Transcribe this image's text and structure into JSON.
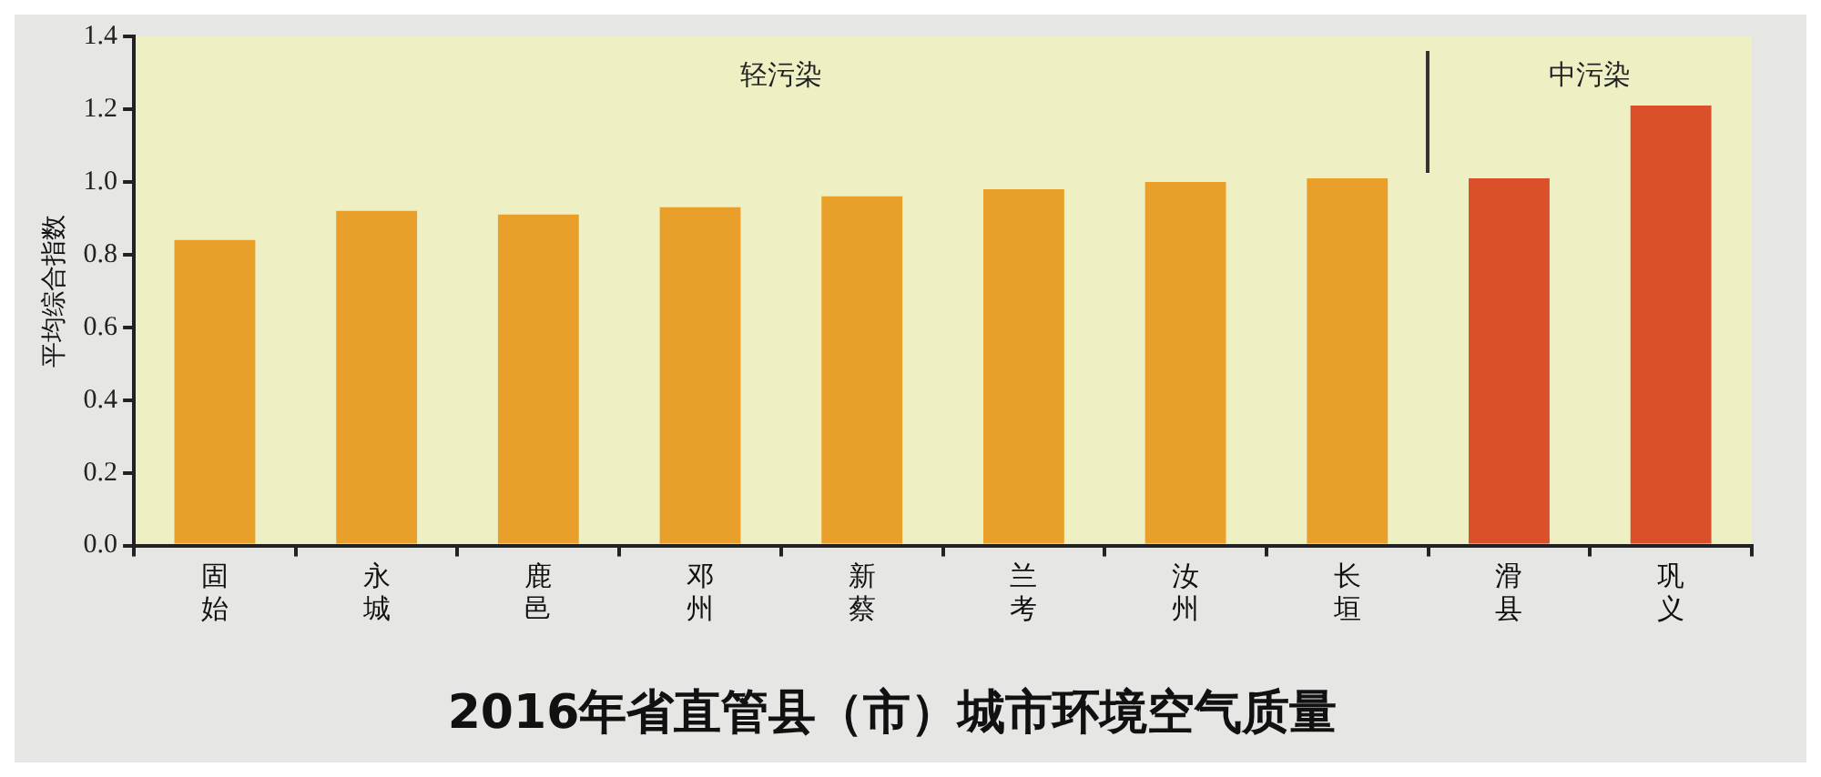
{
  "chart_data": {
    "type": "bar",
    "title": "2016年省直管县（市）城市环境空气质量",
    "ylabel": "平均综合指数",
    "categories": [
      "固始",
      "永城",
      "鹿邑",
      "邓州",
      "新蔡",
      "兰考",
      "汝州",
      "长垣",
      "滑县",
      "巩义"
    ],
    "values": [
      0.84,
      0.92,
      0.91,
      0.93,
      0.96,
      0.98,
      1.0,
      1.01,
      1.01,
      1.21
    ],
    "colors": [
      "#e9a02a",
      "#e9a02a",
      "#e9a02a",
      "#e9a02a",
      "#e9a02a",
      "#e9a02a",
      "#e9a02a",
      "#e9a02a",
      "#d9502a",
      "#d9502a"
    ],
    "ylim": [
      0,
      1.4
    ],
    "yticks": [
      {
        "value": 0,
        "label": "0.0"
      },
      {
        "value": 0.2,
        "label": "0.2"
      },
      {
        "value": 0.4,
        "label": "0.4"
      },
      {
        "value": 0.6,
        "label": "0.6"
      },
      {
        "value": 0.8,
        "label": "0.8"
      },
      {
        "value": 1,
        "label": "1.0"
      },
      {
        "value": 1.2,
        "label": "1.2"
      },
      {
        "value": 1.4,
        "label": "1.4"
      }
    ],
    "annotations": [
      "轻污染",
      "中污染"
    ],
    "grid": false,
    "legend": false
  }
}
